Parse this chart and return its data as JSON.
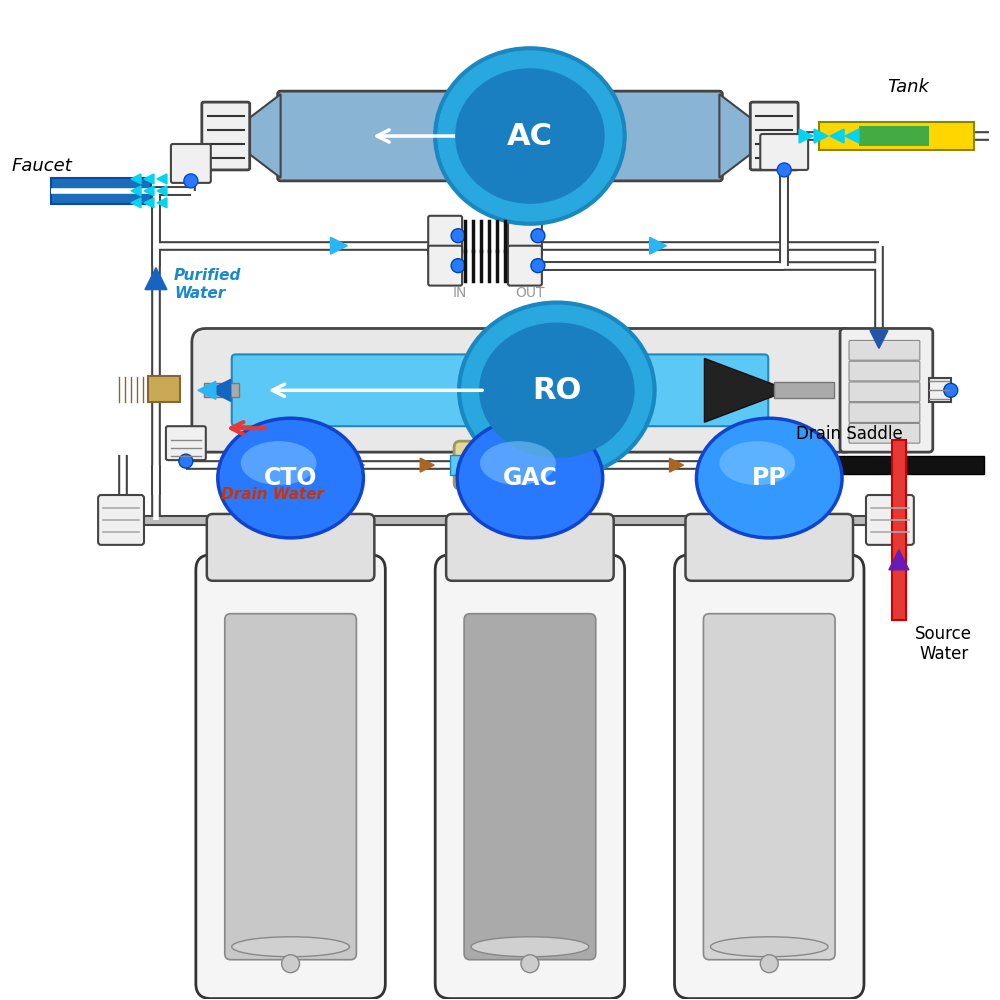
{
  "bg_color": "#ffffff",
  "labels": {
    "AC": "AC",
    "RO": "RO",
    "CTO": "CTO",
    "GAC": "GAC",
    "PP": "PP",
    "faucet": "Faucet",
    "tank": "Tank",
    "purified_water": "Purified\nWater",
    "drain_water": "Drain Water",
    "drain_saddle": "Drain Saddle",
    "source_water": "Source\nWater",
    "IN": "IN",
    "OUT": "OUT"
  },
  "colors": {
    "blue_body": "#8ab4d4",
    "blue_circle_outer": "#29a8e0",
    "blue_circle_inner": "#1a7fc1",
    "blue_pipe": "#5BC8F5",
    "blue_dark": "#1565C0",
    "blue_arrow": "#29B6F6",
    "blue_faucet": "#1a6dbd",
    "cyan_arrow": "#00d4f0",
    "yellow": "#FFD600",
    "yellow_green": "#99cc00",
    "red": "#e53935",
    "red_drain": "#cc3300",
    "gray_dark": "#444444",
    "gray_med": "#888888",
    "gray_light": "#cccccc",
    "gray_housing": "#e8e8e8",
    "white": "#ffffff",
    "beige": "#e8d898",
    "black_saddle": "#111111",
    "connector_white": "#f0f0f0",
    "purple": "#6a1bb5",
    "brown_arrow": "#aa6622",
    "blue_down_arrow": "#2255aa",
    "filter_cto": "#c8c8c8",
    "filter_gac": "#aaaaaa",
    "filter_pp": "#d4d4d4"
  }
}
